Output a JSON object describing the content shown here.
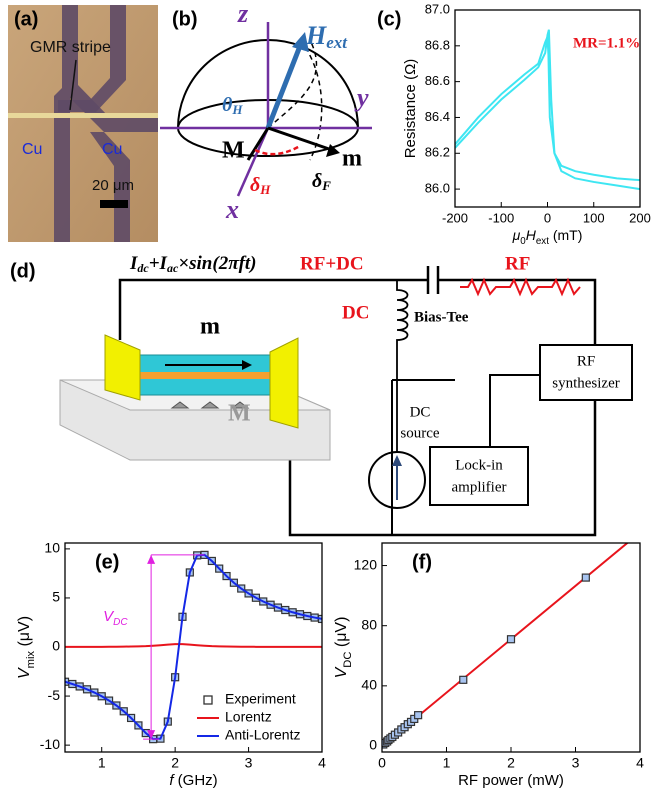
{
  "a": {
    "label": "(a)",
    "stripe": "GMR stripe",
    "cu_left": "Cu",
    "cu_right": "Cu",
    "scale": "20 μm"
  },
  "b": {
    "label": "(b)",
    "z": "z",
    "h": "H",
    "h_sub": "ext",
    "y": "y",
    "theta": "θ",
    "theta_sub": "H",
    "big_m": "M",
    "small_m": "m",
    "x": "x",
    "delta_h": "δ",
    "delta_h_sub": "H",
    "delta_f": "δ",
    "delta_f_sub": "F"
  },
  "d": {
    "label": "(d)",
    "i1": "I",
    "i1_sub": "dc",
    "i2": "+I",
    "i2_sub": "ac",
    "i3": "×sin(2πft)",
    "rf_dc": "RF+DC",
    "rf": "RF",
    "dc": "DC",
    "bias_tee": "Bias-Tee",
    "synth": [
      "RF",
      "synthesizer"
    ],
    "dc_source": [
      "DC",
      "source"
    ],
    "lockin": [
      "Lock-in",
      "amplifier"
    ],
    "m": "m",
    "big_m": "M"
  },
  "chart_data": [
    {
      "type": "line",
      "label": "(c)",
      "xlabel": [
        {
          "text": "μ",
          "style": "italic"
        },
        {
          "text": "0",
          "style": "sub"
        },
        {
          "text": "H",
          "style": "italic"
        },
        {
          "text": "ext",
          "style": "sub"
        },
        {
          "text": " (mT)",
          "style": "normal"
        }
      ],
      "ylabel": [
        {
          "text": "Resistance (Ω)",
          "style": "normal"
        }
      ],
      "xlim": [
        -200,
        200
      ],
      "ylim": [
        85.9,
        87.0
      ],
      "xticks": [
        -200,
        -100,
        0,
        100,
        200
      ],
      "yticks": [
        {
          "value": 86,
          "label": "86.0"
        },
        86.2,
        86.4,
        86.6,
        86.8,
        {
          "value": 87,
          "label": "87.0"
        }
      ],
      "annotation": {
        "text": "MR=1.1%",
        "color": "#e8141c"
      },
      "series": [
        {
          "color": "#3ee6f2",
          "mode": "line",
          "x": [
            -200,
            -150,
            -100,
            -50,
            -20,
            -5,
            0,
            3,
            8,
            15,
            30,
            60,
            100,
            150,
            200
          ],
          "values": [
            86.23,
            86.37,
            86.5,
            86.61,
            86.68,
            86.76,
            86.86,
            86.89,
            86.5,
            86.2,
            86.1,
            86.06,
            86.04,
            86.02,
            86.0
          ]
        },
        {
          "color": "#3ee6f2",
          "mode": "line",
          "x": [
            200,
            150,
            100,
            60,
            30,
            15,
            5,
            2,
            0,
            -5,
            -20,
            -50,
            -100,
            -150,
            -200
          ],
          "values": [
            86.05,
            86.06,
            86.08,
            86.1,
            86.13,
            86.2,
            86.4,
            86.75,
            86.85,
            86.82,
            86.7,
            86.64,
            86.53,
            86.4,
            86.25
          ]
        }
      ]
    },
    {
      "type": "line",
      "label": "(e)",
      "xlabel": [
        {
          "text": "f",
          "style": "italic"
        },
        {
          "text": " (GHz)",
          "style": "normal"
        }
      ],
      "ylabel": [
        {
          "text": "V",
          "style": "italic"
        },
        {
          "text": "mix",
          "style": "sub"
        },
        {
          "text": " (μV)",
          "style": "normal"
        }
      ],
      "xlim": [
        0.5,
        4
      ],
      "ylim": [
        -10.7,
        10.6
      ],
      "xticks": [
        1,
        2,
        3,
        4
      ],
      "yticks": [
        -10,
        -5,
        0,
        5,
        10
      ],
      "legend": "lower right",
      "annotation": {
        "text": "V",
        "sub": "DC",
        "color": "#e020e0"
      },
      "x": [
        0.5,
        0.6,
        0.7,
        0.8,
        0.9,
        1.0,
        1.1,
        1.2,
        1.3,
        1.4,
        1.5,
        1.6,
        1.7,
        1.8,
        1.9,
        2.0,
        2.1,
        2.2,
        2.3,
        2.4,
        2.5,
        2.6,
        2.7,
        2.8,
        2.9,
        3.0,
        3.1,
        3.2,
        3.3,
        3.4,
        3.5,
        3.6,
        3.7,
        3.8,
        3.9,
        4.0
      ],
      "series": [
        {
          "name": "Experiment",
          "color": "#333333",
          "fill": "#a8c4f0",
          "mode": "markers",
          "values": [
            -3.54,
            -3.77,
            -4.02,
            -4.31,
            -4.64,
            -5.02,
            -5.46,
            -5.96,
            -6.55,
            -7.23,
            -7.99,
            -8.77,
            -9.39,
            -9.34,
            -7.6,
            -3.08,
            3.08,
            7.6,
            9.34,
            9.39,
            8.77,
            7.99,
            7.23,
            6.55,
            5.96,
            5.46,
            5.02,
            4.64,
            4.31,
            4.02,
            3.77,
            3.54,
            3.34,
            3.16,
            3.0,
            2.86
          ]
        },
        {
          "name": "Lorentz",
          "color": "#e8141c",
          "mode": "line",
          "values": [
            0.01,
            0.01,
            0.01,
            0.02,
            0.02,
            0.02,
            0.03,
            0.03,
            0.04,
            0.05,
            0.07,
            0.09,
            0.13,
            0.18,
            0.24,
            0.29,
            0.29,
            0.24,
            0.18,
            0.13,
            0.09,
            0.07,
            0.05,
            0.04,
            0.03,
            0.03,
            0.02,
            0.02,
            0.02,
            0.01,
            0.01,
            0.01,
            0.01,
            0.01,
            0.01,
            0.01
          ]
        },
        {
          "name": "Anti-Lorentz",
          "color": "#1428e6",
          "mode": "line",
          "values": [
            -3.54,
            -3.77,
            -4.02,
            -4.31,
            -4.64,
            -5.02,
            -5.46,
            -5.96,
            -6.55,
            -7.23,
            -7.99,
            -8.77,
            -9.39,
            -9.34,
            -7.6,
            -3.08,
            3.08,
            7.6,
            9.34,
            9.39,
            8.77,
            7.99,
            7.23,
            6.55,
            5.96,
            5.46,
            5.02,
            4.64,
            4.31,
            4.02,
            3.77,
            3.54,
            3.34,
            3.16,
            3.0,
            2.86
          ]
        }
      ]
    },
    {
      "type": "scatter",
      "label": "(f)",
      "xlabel": [
        {
          "text": "RF power (mW)",
          "style": "normal"
        }
      ],
      "ylabel": [
        {
          "text": "V",
          "style": "italic"
        },
        {
          "text": "DC",
          "style": "sub"
        },
        {
          "text": " (μV)",
          "style": "normal"
        }
      ],
      "xlim": [
        0,
        4
      ],
      "ylim": [
        -4,
        135
      ],
      "xticks": [
        0,
        1,
        2,
        3,
        4
      ],
      "yticks": [
        0,
        40,
        80,
        120
      ],
      "series": [
        {
          "color": "#e8141c",
          "mode": "line",
          "x": [
            0,
            4
          ],
          "values": [
            0,
            142
          ]
        },
        {
          "color": "#333333",
          "fill": "#a8c4f0",
          "mode": "markers",
          "x": [
            0.02,
            0.05,
            0.08,
            0.1,
            0.13,
            0.16,
            0.2,
            0.25,
            0.3,
            0.35,
            0.4,
            0.45,
            0.5,
            0.56,
            1.26,
            2.0,
            3.16
          ],
          "values": [
            1,
            2,
            3,
            4,
            5,
            6,
            7.5,
            9,
            11,
            12.5,
            14.5,
            16,
            18,
            20.5,
            44,
            71,
            112
          ]
        }
      ]
    }
  ]
}
